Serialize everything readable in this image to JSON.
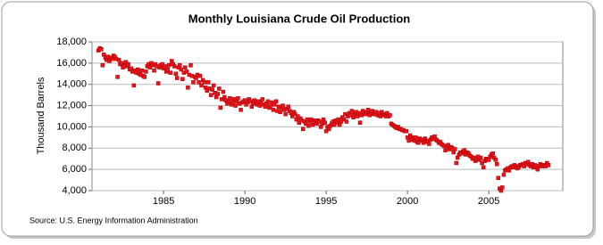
{
  "chart_data": {
    "type": "scatter",
    "title": "Monthly Louisiana Crude Oil Production",
    "y_label": "Thousand Barrels",
    "source": "Source: U.S. Energy Information Administration",
    "color": "#e8141b",
    "grid": true,
    "xlim": [
      1980.6,
      2009.55
    ],
    "ylim": [
      4000,
      18000
    ],
    "xticks": [
      1985,
      1990,
      1995,
      2000,
      2005
    ],
    "yticks": [
      {
        "value": 4000,
        "label": "4,000"
      },
      {
        "value": 6000,
        "label": "6,000"
      },
      {
        "value": 8000,
        "label": "8,000"
      },
      {
        "value": 10000,
        "label": "10,000"
      },
      {
        "value": 12000,
        "label": "12,000"
      },
      {
        "value": 14000,
        "label": "14,000"
      },
      {
        "value": 16000,
        "label": "16,000"
      },
      {
        "value": 18000,
        "label": "18,000"
      }
    ],
    "x": [
      1981,
      1981.08,
      1981.17,
      1981.25,
      1981.33,
      1981.42,
      1981.5,
      1981.58,
      1981.67,
      1981.75,
      1981.83,
      1981.92,
      1982,
      1982.08,
      1982.17,
      1982.25,
      1982.33,
      1982.42,
      1982.5,
      1982.58,
      1982.67,
      1982.75,
      1982.83,
      1982.92,
      1983,
      1983.08,
      1983.17,
      1983.25,
      1983.33,
      1983.42,
      1983.5,
      1983.58,
      1983.67,
      1983.75,
      1983.83,
      1983.92,
      1984,
      1984.08,
      1984.17,
      1984.25,
      1984.33,
      1984.42,
      1984.5,
      1984.58,
      1984.67,
      1984.75,
      1984.83,
      1984.92,
      1985,
      1985.08,
      1985.17,
      1985.25,
      1985.33,
      1985.42,
      1985.5,
      1985.58,
      1985.67,
      1985.75,
      1985.83,
      1985.92,
      1986,
      1986.08,
      1986.17,
      1986.25,
      1986.33,
      1986.42,
      1986.5,
      1986.58,
      1986.67,
      1986.75,
      1986.83,
      1986.92,
      1987,
      1987.08,
      1987.17,
      1987.25,
      1987.33,
      1987.42,
      1987.5,
      1987.58,
      1987.67,
      1987.75,
      1987.83,
      1987.92,
      1988,
      1988.08,
      1988.17,
      1988.25,
      1988.33,
      1988.42,
      1988.5,
      1988.58,
      1988.67,
      1988.75,
      1988.83,
      1988.92,
      1989,
      1989.08,
      1989.17,
      1989.25,
      1989.33,
      1989.42,
      1989.5,
      1989.58,
      1989.67,
      1989.75,
      1989.83,
      1989.92,
      1990,
      1990.08,
      1990.17,
      1990.25,
      1990.33,
      1990.42,
      1990.5,
      1990.58,
      1990.67,
      1990.75,
      1990.83,
      1990.92,
      1991,
      1991.08,
      1991.17,
      1991.25,
      1991.33,
      1991.42,
      1991.5,
      1991.58,
      1991.67,
      1991.75,
      1991.83,
      1991.92,
      1992,
      1992.08,
      1992.17,
      1992.25,
      1992.33,
      1992.42,
      1992.5,
      1992.58,
      1992.67,
      1992.75,
      1992.83,
      1992.92,
      1993,
      1993.08,
      1993.17,
      1993.25,
      1993.33,
      1993.42,
      1993.5,
      1993.58,
      1993.67,
      1993.75,
      1993.83,
      1993.92,
      1994,
      1994.08,
      1994.17,
      1994.25,
      1994.33,
      1994.42,
      1994.5,
      1994.58,
      1994.67,
      1994.75,
      1994.83,
      1994.92,
      1995,
      1995.08,
      1995.17,
      1995.25,
      1995.33,
      1995.42,
      1995.5,
      1995.58,
      1995.67,
      1995.75,
      1995.83,
      1995.92,
      1996,
      1996.08,
      1996.17,
      1996.25,
      1996.33,
      1996.42,
      1996.5,
      1996.58,
      1996.67,
      1996.75,
      1996.83,
      1996.92,
      1997,
      1997.08,
      1997.17,
      1997.25,
      1997.33,
      1997.42,
      1997.5,
      1997.58,
      1997.67,
      1997.75,
      1997.83,
      1997.92,
      1998,
      1998.08,
      1998.17,
      1998.25,
      1998.33,
      1998.42,
      1998.5,
      1998.58,
      1998.67,
      1998.75,
      1998.83,
      1998.92,
      1999,
      1999.08,
      1999.17,
      1999.25,
      1999.33,
      1999.42,
      1999.5,
      1999.58,
      1999.67,
      1999.75,
      1999.83,
      1999.92,
      2000,
      2000.08,
      2000.17,
      2000.25,
      2000.33,
      2000.42,
      2000.5,
      2000.58,
      2000.67,
      2000.75,
      2000.83,
      2000.92,
      2001,
      2001.08,
      2001.17,
      2001.25,
      2001.33,
      2001.42,
      2001.5,
      2001.58,
      2001.67,
      2001.75,
      2001.83,
      2001.92,
      2002,
      2002.08,
      2002.17,
      2002.25,
      2002.33,
      2002.42,
      2002.5,
      2002.58,
      2002.67,
      2002.75,
      2002.83,
      2002.92,
      2003,
      2003.08,
      2003.17,
      2003.25,
      2003.33,
      2003.42,
      2003.5,
      2003.58,
      2003.67,
      2003.75,
      2003.83,
      2003.92,
      2004,
      2004.08,
      2004.17,
      2004.25,
      2004.33,
      2004.42,
      2004.5,
      2004.58,
      2004.67,
      2004.75,
      2004.83,
      2004.92,
      2005,
      2005.08,
      2005.17,
      2005.25,
      2005.33,
      2005.42,
      2005.5,
      2005.58,
      2005.67,
      2005.75,
      2005.83,
      2005.92,
      2006,
      2006.08,
      2006.17,
      2006.25,
      2006.33,
      2006.42,
      2006.5,
      2006.58,
      2006.67,
      2006.75,
      2006.83,
      2006.92,
      2007,
      2007.08,
      2007.17,
      2007.25,
      2007.33,
      2007.42,
      2007.5,
      2007.58,
      2007.67,
      2007.75,
      2007.83,
      2007.92,
      2008,
      2008.08,
      2008.17,
      2008.25,
      2008.33,
      2008.42,
      2008.5,
      2008.58,
      2008.67
    ],
    "values": [
      17200,
      17400,
      17300,
      15800,
      16800,
      16500,
      16300,
      16600,
      16200,
      16500,
      16400,
      16700,
      16600,
      16400,
      14700,
      16300,
      15900,
      16000,
      15600,
      15800,
      16100,
      15700,
      15900,
      15400,
      15500,
      15200,
      13900,
      15300,
      15100,
      15400,
      15000,
      14900,
      15300,
      14800,
      14700,
      15200,
      15700,
      15900,
      15600,
      16000,
      15800,
      15300,
      15900,
      15700,
      14100,
      15600,
      15800,
      15900,
      15500,
      15700,
      15200,
      15400,
      15800,
      15100,
      16200,
      15900,
      15700,
      15000,
      14600,
      15600,
      15800,
      15400,
      14500,
      15100,
      15600,
      15200,
      13700,
      14900,
      15800,
      14800,
      14200,
      14700,
      14600,
      14900,
      14200,
      14800,
      13900,
      14400,
      14200,
      13700,
      13400,
      14200,
      13600,
      13000,
      13500,
      13900,
      13200,
      12800,
      13100,
      13600,
      11800,
      12600,
      13300,
      12800,
      12500,
      12200,
      12400,
      12700,
      12100,
      12300,
      12600,
      12000,
      12400,
      12700,
      12200,
      11600,
      12300,
      12400,
      12500,
      12100,
      12300,
      12600,
      12400,
      11900,
      12200,
      12500,
      12300,
      12100,
      12400,
      12000,
      12300,
      12600,
      12100,
      11900,
      12200,
      12400,
      11800,
      12000,
      12300,
      11600,
      12100,
      12400,
      11500,
      11900,
      11400,
      11800,
      12000,
      11600,
      11200,
      11700,
      11900,
      11500,
      11300,
      11000,
      11400,
      11200,
      10700,
      11000,
      10400,
      10800,
      10600,
      9800,
      10500,
      10300,
      10700,
      10100,
      10500,
      10700,
      10200,
      10600,
      10400,
      10300,
      10600,
      10500,
      10000,
      10300,
      10700,
      10400,
      9600,
      10000,
      9800,
      10100,
      10300,
      10500,
      10200,
      10600,
      10400,
      10700,
      10200,
      10500,
      10900,
      10700,
      11200,
      10500,
      11000,
      11300,
      11100,
      11500,
      10900,
      11200,
      11400,
      11000,
      11300,
      10400,
      11100,
      11500,
      11300,
      11200,
      11400,
      11600,
      11100,
      11300,
      11500,
      11200,
      11200,
      11400,
      11100,
      11300,
      11000,
      11400,
      11200,
      11100,
      11000,
      11300,
      11000,
      11100,
      10300,
      10200,
      10100,
      10000,
      9900,
      10000,
      9800,
      9800,
      9700,
      9700,
      9600,
      9600,
      9000,
      8700,
      9200,
      9000,
      8800,
      8700,
      9000,
      8600,
      8500,
      8900,
      8800,
      8700,
      8500,
      8900,
      8700,
      8600,
      8400,
      8800,
      9000,
      8900,
      9100,
      8800,
      8700,
      8500,
      8600,
      8400,
      8300,
      8200,
      7800,
      8100,
      8300,
      7900,
      8100,
      8000,
      7600,
      7900,
      6600,
      7100,
      7400,
      7600,
      7500,
      7700,
      7800,
      7400,
      7600,
      7500,
      7300,
      7200,
      7000,
      7100,
      6800,
      7000,
      7200,
      6900,
      7100,
      6600,
      6200,
      6800,
      7000,
      6900,
      6900,
      7200,
      7400,
      7500,
      7100,
      6900,
      6500,
      5200,
      4200,
      4000,
      4300,
      5500,
      5900,
      6000,
      6100,
      5900,
      6200,
      6300,
      6200,
      6400,
      6300,
      6100,
      6200,
      6400,
      6400,
      6500,
      6300,
      6600,
      6500,
      6700,
      6400,
      6300,
      6500,
      6200,
      6400,
      6300,
      6000,
      6300,
      6500,
      6400,
      6300,
      6400,
      6300,
      6600,
      6400
    ]
  }
}
